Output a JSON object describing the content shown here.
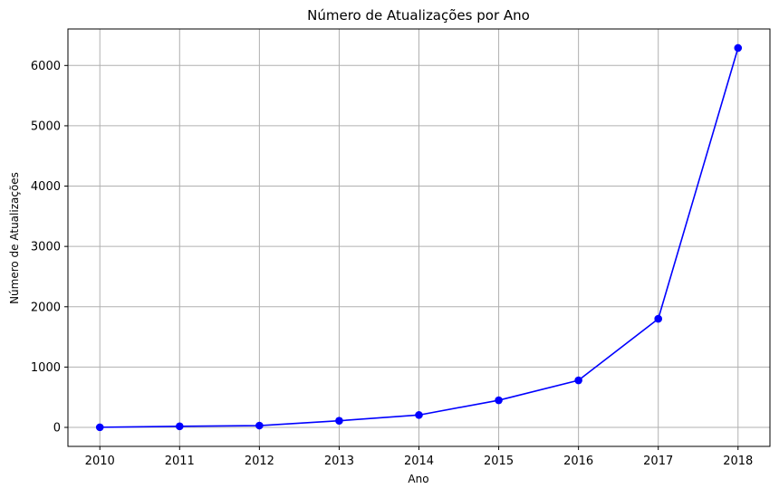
{
  "chart_data": {
    "type": "line",
    "title": "Número de Atualizações por Ano",
    "xlabel": "Ano",
    "ylabel": "Número de Atualizações",
    "x": [
      2010,
      2011,
      2012,
      2013,
      2014,
      2015,
      2016,
      2017,
      2018
    ],
    "series": [
      {
        "values": [
          2,
          18,
          30,
          110,
          205,
          450,
          780,
          1800,
          6290
        ],
        "color": "#0000ff",
        "marker": "circle"
      }
    ],
    "xlim": [
      2009.6,
      2018.4
    ],
    "ylim": [
      -315,
      6605
    ],
    "x_ticks": [
      "2010",
      "2011",
      "2012",
      "2013",
      "2014",
      "2015",
      "2016",
      "2017",
      "2018"
    ],
    "y_ticks": [
      0,
      1000,
      2000,
      3000,
      4000,
      5000,
      6000
    ],
    "grid": true,
    "legend": false,
    "colors": {
      "line": "#0000ff",
      "grid": "#b0b0b0",
      "axes": "#000000"
    }
  }
}
